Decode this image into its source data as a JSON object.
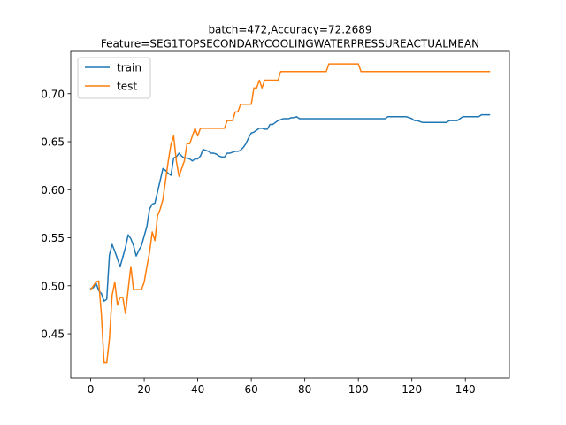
{
  "chart_data": {
    "type": "line",
    "title": "batch=472,Accuracy=72.2689",
    "subtitle": "Feature=SEG1TOPSECONDARYCOOLINGWATERPRESSUREACTUALMEAN",
    "xlabel": "",
    "ylabel": "",
    "xlim": [
      -7.45,
      156.45
    ],
    "ylim": [
      0.404,
      0.744
    ],
    "xticks": [
      0,
      20,
      40,
      60,
      80,
      100,
      120,
      140
    ],
    "xtick_labels": [
      "0",
      "20",
      "40",
      "60",
      "80",
      "100",
      "120",
      "140"
    ],
    "yticks": [
      0.45,
      0.5,
      0.55,
      0.6,
      0.65,
      0.7
    ],
    "ytick_labels": [
      "0.45",
      "0.50",
      "0.55",
      "0.60",
      "0.65",
      "0.70"
    ],
    "grid": false,
    "legend": "top-left",
    "series": [
      {
        "name": "train",
        "color": "#1f77b4",
        "points": [
          [
            0,
            0.497
          ],
          [
            1,
            0.498
          ],
          [
            2,
            0.503
          ],
          [
            3,
            0.495
          ],
          [
            4,
            0.492
          ],
          [
            5,
            0.484
          ],
          [
            6,
            0.486
          ],
          [
            7,
            0.532
          ],
          [
            8,
            0.543
          ],
          [
            9,
            0.536
          ],
          [
            10,
            0.528
          ],
          [
            11,
            0.52
          ],
          [
            12,
            0.53
          ],
          [
            13,
            0.54
          ],
          [
            14,
            0.553
          ],
          [
            15,
            0.549
          ],
          [
            16,
            0.542
          ],
          [
            17,
            0.531
          ],
          [
            18,
            0.537
          ],
          [
            19,
            0.542
          ],
          [
            20,
            0.552
          ],
          [
            21,
            0.562
          ],
          [
            22,
            0.58
          ],
          [
            23,
            0.585
          ],
          [
            24,
            0.586
          ],
          [
            25,
            0.598
          ],
          [
            26,
            0.61
          ],
          [
            27,
            0.622
          ],
          [
            28,
            0.62
          ],
          [
            29,
            0.617
          ],
          [
            30,
            0.615
          ],
          [
            31,
            0.633
          ],
          [
            32,
            0.634
          ],
          [
            33,
            0.638
          ],
          [
            34,
            0.635
          ],
          [
            35,
            0.633
          ],
          [
            36,
            0.633
          ],
          [
            37,
            0.632
          ],
          [
            38,
            0.63
          ],
          [
            39,
            0.632
          ],
          [
            40,
            0.632
          ],
          [
            41,
            0.635
          ],
          [
            42,
            0.642
          ],
          [
            43,
            0.641
          ],
          [
            44,
            0.64
          ],
          [
            45,
            0.638
          ],
          [
            46,
            0.638
          ],
          [
            47,
            0.637
          ],
          [
            48,
            0.635
          ],
          [
            49,
            0.634
          ],
          [
            50,
            0.634
          ],
          [
            51,
            0.638
          ],
          [
            52,
            0.638
          ],
          [
            53,
            0.639
          ],
          [
            54,
            0.64
          ],
          [
            55,
            0.64
          ],
          [
            56,
            0.641
          ],
          [
            57,
            0.644
          ],
          [
            58,
            0.648
          ],
          [
            59,
            0.654
          ],
          [
            60,
            0.659
          ],
          [
            61,
            0.66
          ],
          [
            62,
            0.662
          ],
          [
            63,
            0.664
          ],
          [
            64,
            0.664
          ],
          [
            65,
            0.663
          ],
          [
            66,
            0.663
          ],
          [
            67,
            0.668
          ],
          [
            68,
            0.668
          ],
          [
            69,
            0.67
          ],
          [
            70,
            0.672
          ],
          [
            71,
            0.673
          ],
          [
            72,
            0.674
          ],
          [
            73,
            0.674
          ],
          [
            74,
            0.674
          ],
          [
            75,
            0.675
          ],
          [
            76,
            0.675
          ],
          [
            77,
            0.676
          ],
          [
            78,
            0.674
          ],
          [
            80,
            0.674
          ],
          [
            90,
            0.674
          ],
          [
            100,
            0.674
          ],
          [
            110,
            0.674
          ],
          [
            111,
            0.676
          ],
          [
            112,
            0.676
          ],
          [
            118,
            0.676
          ],
          [
            119,
            0.675
          ],
          [
            120,
            0.674
          ],
          [
            121,
            0.672
          ],
          [
            122,
            0.672
          ],
          [
            123,
            0.671
          ],
          [
            124,
            0.67
          ],
          [
            125,
            0.67
          ],
          [
            130,
            0.67
          ],
          [
            133,
            0.67
          ],
          [
            134,
            0.672
          ],
          [
            137,
            0.672
          ],
          [
            138,
            0.674
          ],
          [
            139,
            0.676
          ],
          [
            145,
            0.676
          ],
          [
            146,
            0.678
          ],
          [
            149,
            0.678
          ]
        ]
      },
      {
        "name": "test",
        "color": "#ff7f0e",
        "points": [
          [
            0,
            0.496
          ],
          [
            1,
            0.5
          ],
          [
            2,
            0.504
          ],
          [
            3,
            0.505
          ],
          [
            4,
            0.47
          ],
          [
            5,
            0.42
          ],
          [
            6,
            0.42
          ],
          [
            7,
            0.445
          ],
          [
            8,
            0.49
          ],
          [
            9,
            0.504
          ],
          [
            10,
            0.48
          ],
          [
            11,
            0.488
          ],
          [
            12,
            0.488
          ],
          [
            13,
            0.471
          ],
          [
            14,
            0.496
          ],
          [
            15,
            0.52
          ],
          [
            16,
            0.496
          ],
          [
            17,
            0.496
          ],
          [
            18,
            0.496
          ],
          [
            19,
            0.496
          ],
          [
            20,
            0.504
          ],
          [
            21,
            0.52
          ],
          [
            22,
            0.535
          ],
          [
            23,
            0.556
          ],
          [
            24,
            0.547
          ],
          [
            25,
            0.573
          ],
          [
            26,
            0.58
          ],
          [
            27,
            0.59
          ],
          [
            28,
            0.61
          ],
          [
            29,
            0.63
          ],
          [
            30,
            0.647
          ],
          [
            31,
            0.656
          ],
          [
            32,
            0.63
          ],
          [
            33,
            0.614
          ],
          [
            34,
            0.622
          ],
          [
            35,
            0.63
          ],
          [
            36,
            0.648
          ],
          [
            37,
            0.648
          ],
          [
            38,
            0.656
          ],
          [
            39,
            0.664
          ],
          [
            40,
            0.656
          ],
          [
            41,
            0.664
          ],
          [
            50,
            0.664
          ],
          [
            51,
            0.672
          ],
          [
            53,
            0.672
          ],
          [
            54,
            0.681
          ],
          [
            55,
            0.681
          ],
          [
            56,
            0.689
          ],
          [
            60,
            0.689
          ],
          [
            61,
            0.706
          ],
          [
            62,
            0.706
          ],
          [
            63,
            0.714
          ],
          [
            64,
            0.706
          ],
          [
            65,
            0.714
          ],
          [
            70,
            0.714
          ],
          [
            71,
            0.723
          ],
          [
            88,
            0.723
          ],
          [
            89,
            0.731
          ],
          [
            100,
            0.731
          ],
          [
            101,
            0.723
          ],
          [
            149,
            0.723
          ]
        ]
      }
    ]
  }
}
